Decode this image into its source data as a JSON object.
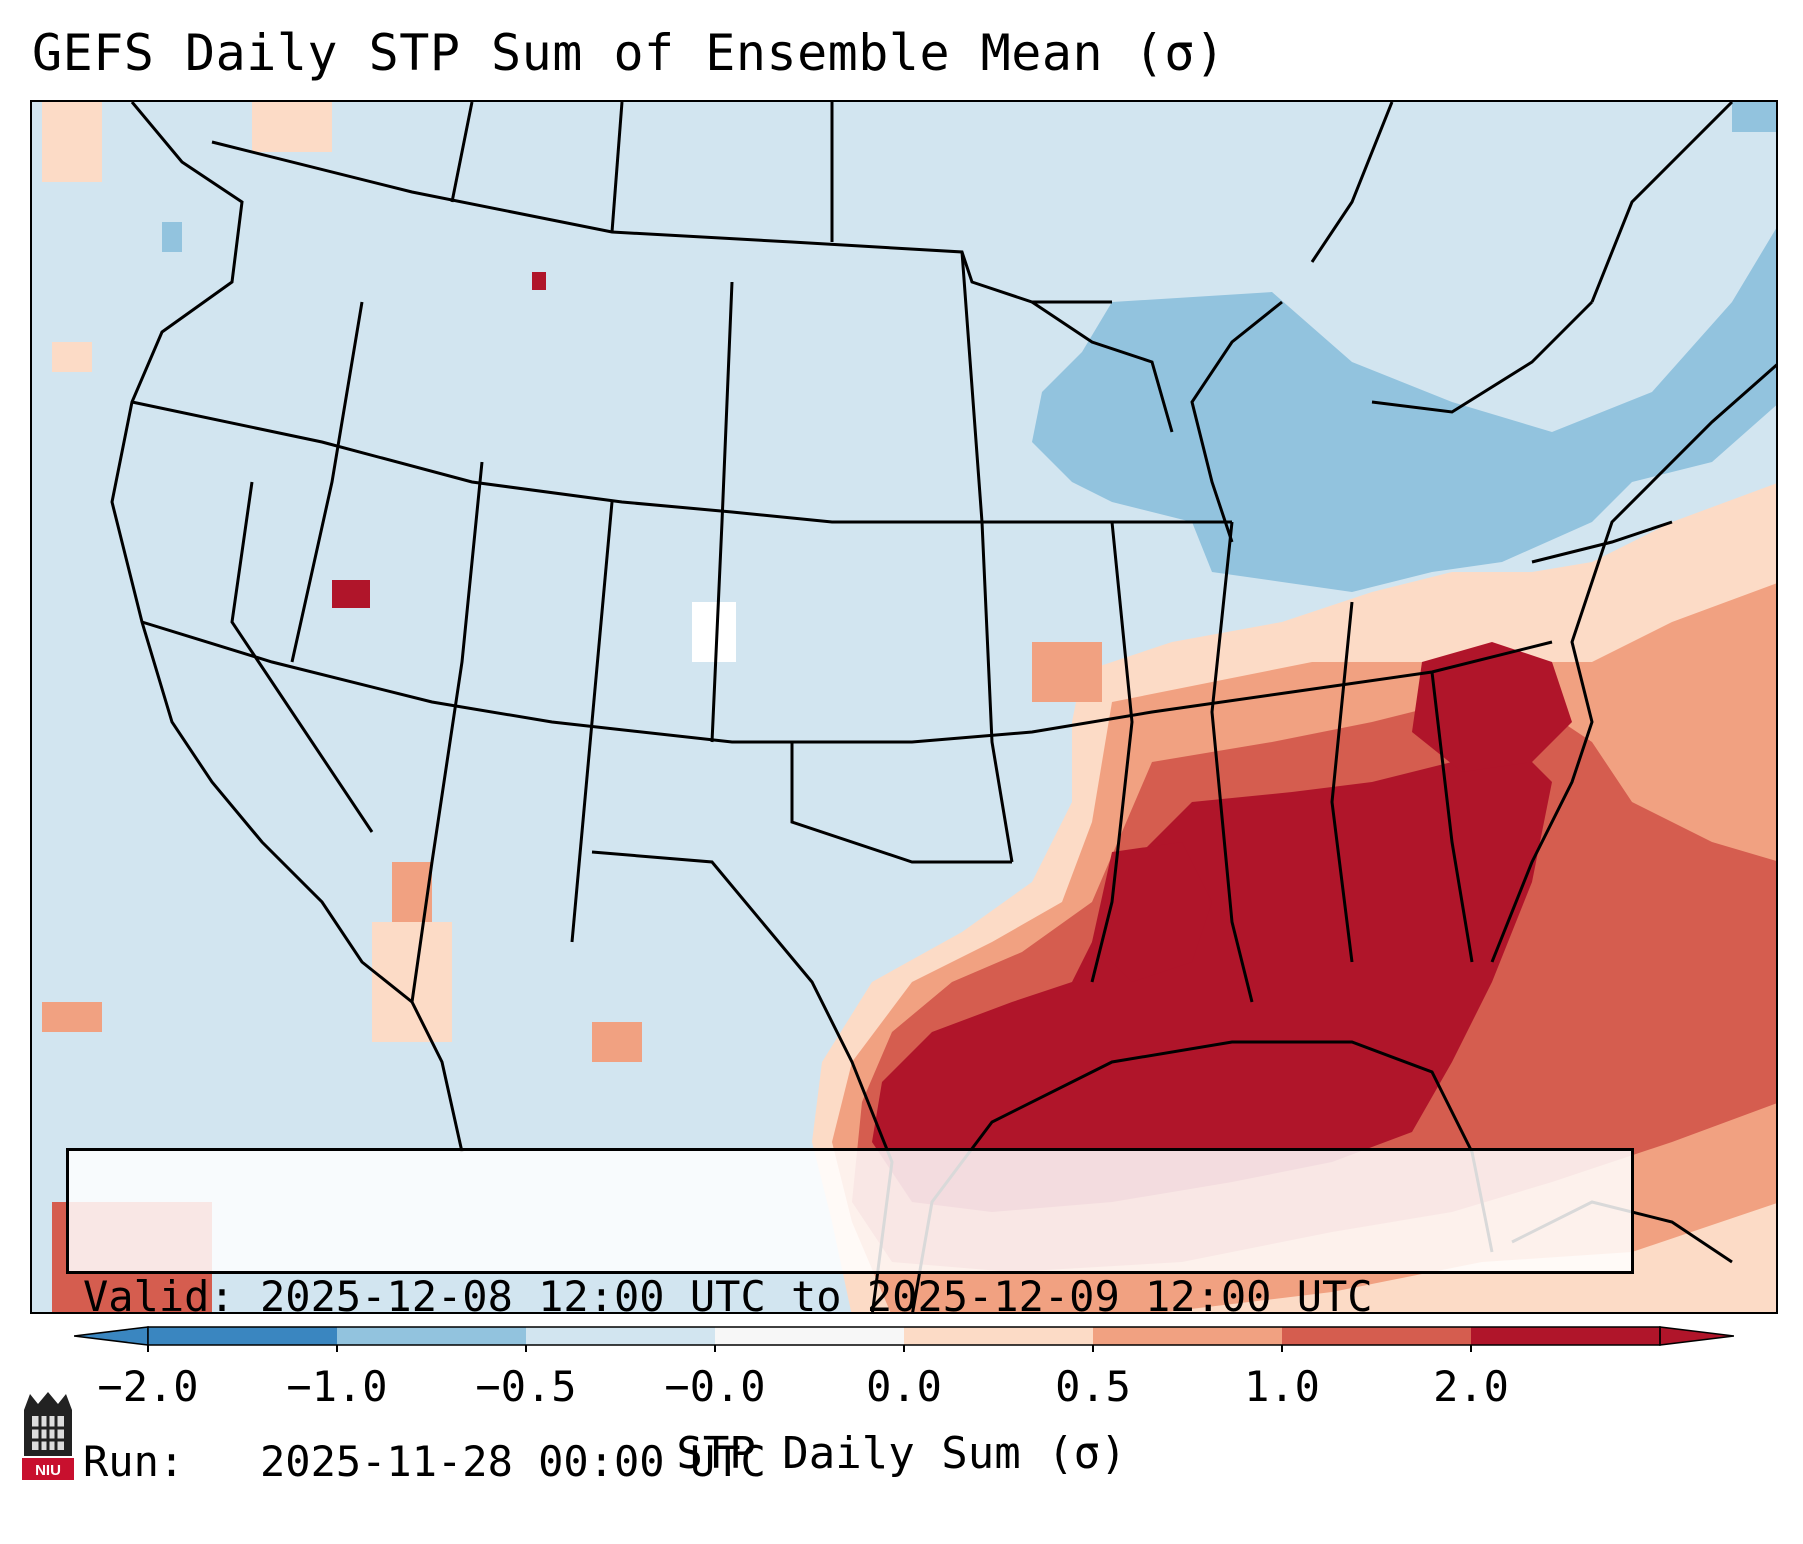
{
  "title": "GEFS Daily STP Sum of Ensemble Mean (σ)",
  "info": {
    "valid_line": "Valid: 2025-12-08 12:00 UTC to 2025-12-09 12:00 UTC",
    "run_line": "Run:   2025-11-28 00:00 UTC"
  },
  "colorbar": {
    "label": "STP Daily Sum (σ)",
    "ticks": [
      "−2.0",
      "−1.0",
      "−0.5",
      "−0.0",
      "0.0",
      "0.5",
      "1.0",
      "2.0"
    ],
    "colors": [
      "#3a86c0",
      "#92c3de",
      "#d2e5f0",
      "#f7f7f7",
      "#fcdbc6",
      "#f1a181",
      "#d55d4f",
      "#b0152a"
    ],
    "extend": "both"
  },
  "logo": {
    "text": "NIU",
    "icon": "niu-logo-icon"
  },
  "map": {
    "region": "CONUS",
    "projection": "lambert-conformal",
    "basemap": "state-borders"
  }
}
